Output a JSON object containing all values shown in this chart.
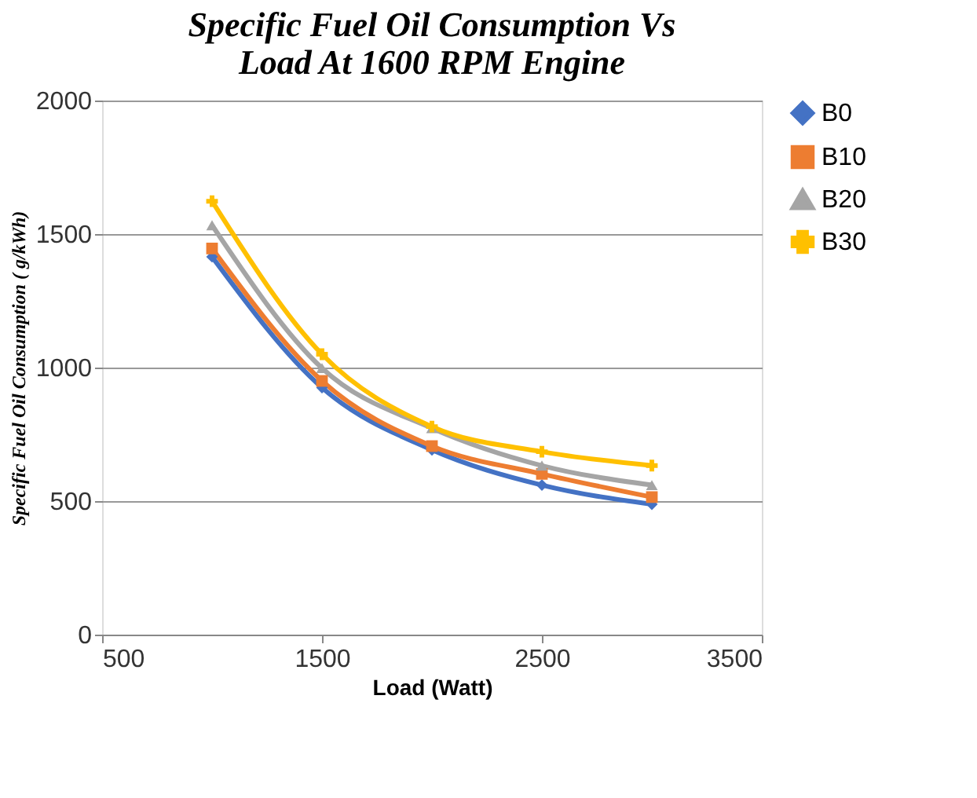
{
  "chart_data": {
    "type": "line",
    "title": [
      "Specific Fuel Oil Consumption Vs",
      "Load At 1600 RPM Engine"
    ],
    "xlabel": "Load (Watt)",
    "ylabel": "Specific Fuel Oil Consumption  ( g/kWh)",
    "x": [
      1000,
      1500,
      2000,
      2500,
      3000
    ],
    "series": [
      {
        "name": "B0",
        "color": "#4472c4",
        "marker": "diamond",
        "values": [
          1415,
          925,
          692,
          560,
          488
        ]
      },
      {
        "name": "B10",
        "color": "#ed7d31",
        "marker": "square",
        "values": [
          1446,
          950,
          706,
          602,
          515
        ]
      },
      {
        "name": "B20",
        "color": "#a5a5a5",
        "marker": "triangle",
        "values": [
          1533,
          998,
          773,
          633,
          560
        ]
      },
      {
        "name": "B30",
        "color": "#ffc000",
        "marker": "cross",
        "values": [
          1623,
          1050,
          779,
          685,
          633
        ]
      }
    ],
    "xlim": [
      500,
      3500
    ],
    "xticks": [
      500,
      1500,
      2500,
      3500
    ],
    "ylim": [
      0,
      2000
    ],
    "yticks": [
      0,
      500,
      1000,
      1500,
      2000
    ],
    "grid": "y",
    "legend": "right",
    "line_style": "solid"
  }
}
